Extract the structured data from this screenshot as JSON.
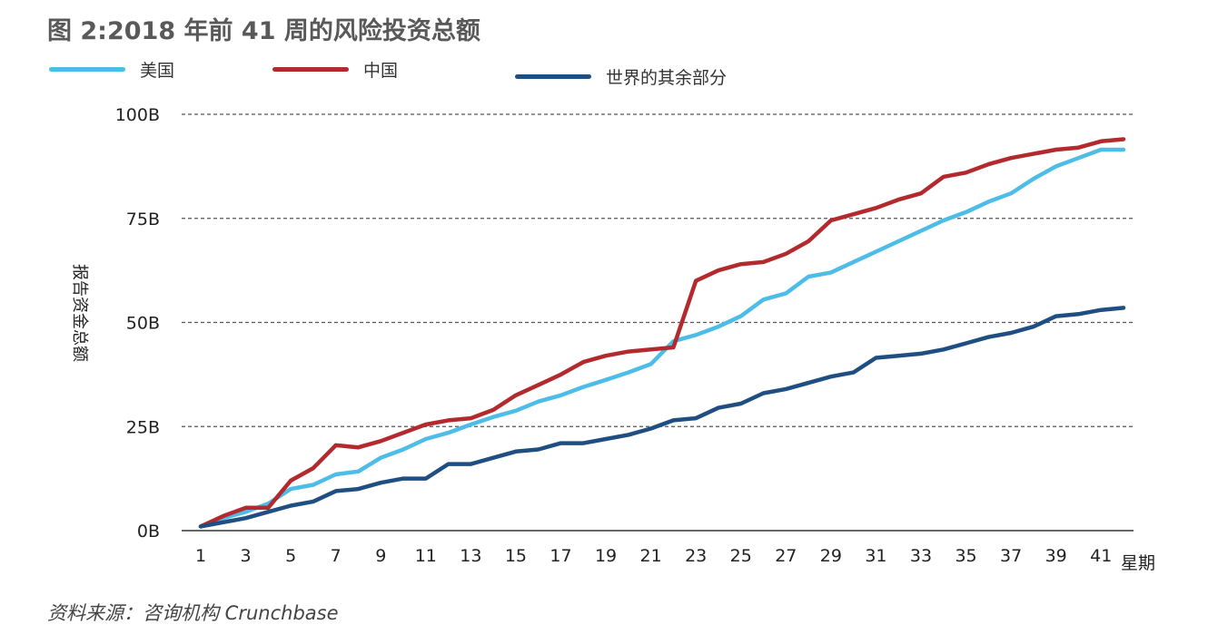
{
  "title": "图 2:2018 年前 41 周的风险投资总额",
  "source": "资料来源：咨询机构 Crunchbase",
  "colors": {
    "usa": "#4dbde8",
    "china": "#b32a2e",
    "rest": "#1f4f82",
    "grid": "#555555",
    "axis": "#333333"
  },
  "chart_data": {
    "type": "line",
    "title": "图 2:2018 年前 41 周的风险投资总额",
    "xlabel": "星期",
    "ylabel": "报告资金总额",
    "ylim": [
      0,
      100
    ],
    "y_ticks": [
      0,
      25,
      50,
      75,
      100
    ],
    "y_tick_labels": [
      "0B",
      "25B",
      "50B",
      "75B",
      "100B"
    ],
    "x_ticks": [
      1,
      3,
      5,
      7,
      9,
      11,
      13,
      15,
      17,
      19,
      21,
      23,
      25,
      27,
      29,
      31,
      33,
      35,
      37,
      39,
      41
    ],
    "x_tick_labels": [
      "1",
      "3",
      "5",
      "7",
      "9",
      "11",
      "13",
      "15",
      "17",
      "19",
      "21",
      "23",
      "25",
      "27",
      "29",
      "31",
      "33",
      "35",
      "37",
      "39",
      "41"
    ],
    "x": [
      1,
      2,
      3,
      4,
      5,
      6,
      7,
      8,
      9,
      10,
      11,
      12,
      13,
      14,
      15,
      16,
      17,
      18,
      19,
      20,
      21,
      22,
      23,
      24,
      25,
      26,
      27,
      28,
      29,
      30,
      31,
      32,
      33,
      34,
      35,
      36,
      37,
      38,
      39,
      40,
      41,
      42
    ],
    "grid": true,
    "legend_position": "top",
    "series": [
      {
        "name": "美国",
        "color": "#4dbde8",
        "values": [
          1,
          3,
          4.5,
          6.5,
          10,
          11,
          13.5,
          14.2,
          17.5,
          19.5,
          22,
          23.5,
          25.5,
          27.3,
          28.8,
          31,
          32.5,
          34.5,
          36.2,
          38,
          40,
          45.5,
          47,
          49,
          51.5,
          55.5,
          57,
          61,
          62,
          64.5,
          67,
          69.5,
          72,
          74.5,
          76.5,
          79,
          81,
          84.5,
          87.5,
          89.5,
          91.5,
          91.5
        ]
      },
      {
        "name": "中国",
        "color": "#b32a2e",
        "values": [
          1,
          3.5,
          5.5,
          5.5,
          12,
          15,
          20.5,
          20,
          21.5,
          23.5,
          25.5,
          26.5,
          27,
          29,
          32.5,
          35,
          37.5,
          40.5,
          42,
          43,
          43.5,
          44,
          60,
          62.5,
          64,
          64.5,
          66.5,
          69.5,
          74.5,
          76,
          77.5,
          79.5,
          81,
          85,
          86,
          88,
          89.5,
          90.5,
          91.5,
          92,
          93.5,
          94
        ]
      },
      {
        "name": "世界的其余部分",
        "color": "#1f4f82",
        "values": [
          1,
          2,
          3,
          4.5,
          6,
          7,
          9.5,
          10,
          11.5,
          12.5,
          12.5,
          16,
          16,
          17.5,
          19,
          19.5,
          21,
          21,
          22,
          23,
          24.5,
          26.5,
          27,
          29.5,
          30.5,
          33,
          34,
          35.5,
          37,
          38,
          41.5,
          42,
          42.5,
          43.5,
          45,
          46.5,
          47.5,
          49,
          51.5,
          52,
          53,
          53.5
        ]
      }
    ]
  }
}
